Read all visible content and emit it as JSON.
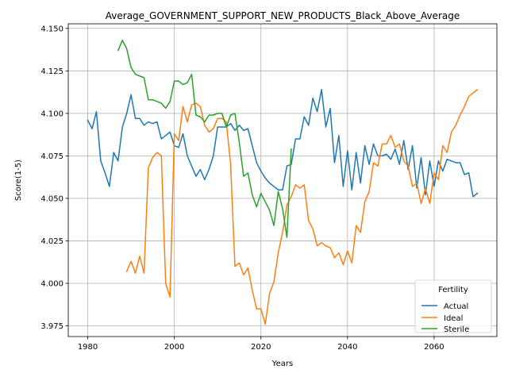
{
  "chart_data": {
    "type": "line",
    "title": "Average_GOVERNMENT_SUPPORT_NEW_PRODUCTS_Black_Above_Average",
    "xlabel": "Years",
    "ylabel": "Score(1-5)",
    "xlim": [
      1975.5,
      2074.5
    ],
    "ylim": [
      3.9687,
      4.1527
    ],
    "xticks": [
      1980,
      2000,
      2020,
      2040,
      2060
    ],
    "yticks": [
      3.975,
      4.0,
      4.025,
      4.05,
      4.075,
      4.1,
      4.125,
      4.15
    ],
    "xtick_labels": [
      "1980",
      "2000",
      "2020",
      "2040",
      "2060"
    ],
    "ytick_labels": [
      "3.975",
      "4.000",
      "4.025",
      "4.050",
      "4.075",
      "4.100",
      "4.125",
      "4.150"
    ],
    "grid": true,
    "legend": {
      "title": "Fertility",
      "position": "lower right"
    },
    "series": [
      {
        "name": "Actual",
        "color": "#1f77b4",
        "points": [
          [
            1980,
            4.096
          ],
          [
            1981,
            4.091
          ],
          [
            1982,
            4.101
          ],
          [
            1983,
            4.072
          ],
          [
            1984,
            4.065
          ],
          [
            1985,
            4.057
          ],
          [
            1986,
            4.077
          ],
          [
            1987,
            4.072
          ],
          [
            1988,
            4.092
          ],
          [
            1989,
            4.1
          ],
          [
            1990,
            4.111
          ],
          [
            1991,
            4.097
          ],
          [
            1992,
            4.097
          ],
          [
            1993,
            4.093
          ],
          [
            1994,
            4.095
          ],
          [
            1995,
            4.094
          ],
          [
            1996,
            4.095
          ],
          [
            1997,
            4.085
          ],
          [
            1998,
            4.087
          ],
          [
            1999,
            4.089
          ],
          [
            2000,
            4.081
          ],
          [
            2001,
            4.08
          ],
          [
            2002,
            4.088
          ],
          [
            2003,
            4.075
          ],
          [
            2004,
            4.069
          ],
          [
            2005,
            4.063
          ],
          [
            2006,
            4.067
          ],
          [
            2007,
            4.061
          ],
          [
            2008,
            4.067
          ],
          [
            2009,
            4.075
          ],
          [
            2010,
            4.092
          ],
          [
            2011,
            4.092
          ],
          [
            2012,
            4.092
          ],
          [
            2013,
            4.094
          ],
          [
            2014,
            4.09
          ],
          [
            2015,
            4.093
          ],
          [
            2016,
            4.09
          ],
          [
            2017,
            4.091
          ],
          [
            2018,
            4.081
          ],
          [
            2019,
            4.071
          ],
          [
            2020,
            4.066
          ],
          [
            2021,
            4.062
          ],
          [
            2022,
            4.059
          ],
          [
            2023,
            4.057
          ],
          [
            2024,
            4.055
          ],
          [
            2025,
            4.055
          ],
          [
            2026,
            4.069
          ],
          [
            2027,
            4.07
          ],
          [
            2028,
            4.085
          ],
          [
            2029,
            4.085
          ],
          [
            2030,
            4.098
          ],
          [
            2031,
            4.093
          ],
          [
            2032,
            4.109
          ],
          [
            2033,
            4.101
          ],
          [
            2034,
            4.114
          ],
          [
            2035,
            4.092
          ],
          [
            2036,
            4.103
          ],
          [
            2037,
            4.071
          ],
          [
            2038,
            4.087
          ],
          [
            2039,
            4.057
          ],
          [
            2040,
            4.078
          ],
          [
            2041,
            4.055
          ],
          [
            2042,
            4.077
          ],
          [
            2043,
            4.059
          ],
          [
            2044,
            4.081
          ],
          [
            2045,
            4.07
          ],
          [
            2046,
            4.082
          ],
          [
            2047,
            4.075
          ],
          [
            2048,
            4.075
          ],
          [
            2049,
            4.076
          ],
          [
            2050,
            4.073
          ],
          [
            2051,
            4.079
          ],
          [
            2052,
            4.07
          ],
          [
            2053,
            4.084
          ],
          [
            2054,
            4.067
          ],
          [
            2055,
            4.081
          ],
          [
            2056,
            4.056
          ],
          [
            2057,
            4.074
          ],
          [
            2058,
            4.052
          ],
          [
            2059,
            4.072
          ],
          [
            2060,
            4.057
          ],
          [
            2061,
            4.072
          ],
          [
            2062,
            4.066
          ],
          [
            2063,
            4.073
          ],
          [
            2064,
            4.072
          ],
          [
            2065,
            4.071
          ],
          [
            2066,
            4.071
          ],
          [
            2067,
            4.064
          ],
          [
            2068,
            4.065
          ],
          [
            2069,
            4.051
          ],
          [
            2070,
            4.053
          ]
        ]
      },
      {
        "name": "Ideal",
        "color": "#ff7f0e",
        "points": [
          [
            1989,
            4.007
          ],
          [
            1990,
            4.013
          ],
          [
            1991,
            4.006
          ],
          [
            1992,
            4.016
          ],
          [
            1993,
            4.006
          ],
          [
            1994,
            4.068
          ],
          [
            1995,
            4.074
          ],
          [
            1996,
            4.077
          ],
          [
            1997,
            4.075
          ],
          [
            1998,
            4.0
          ],
          [
            1999,
            3.992
          ],
          [
            2000,
            4.088
          ],
          [
            2001,
            4.084
          ],
          [
            2002,
            4.104
          ],
          [
            2003,
            4.095
          ],
          [
            2004,
            4.105
          ],
          [
            2005,
            4.106
          ],
          [
            2006,
            4.104
          ],
          [
            2007,
            4.093
          ],
          [
            2008,
            4.089
          ],
          [
            2009,
            4.091
          ],
          [
            2010,
            4.097
          ],
          [
            2011,
            4.097
          ],
          [
            2012,
            4.095
          ],
          [
            2013,
            4.07
          ],
          [
            2014,
            4.01
          ],
          [
            2015,
            4.012
          ],
          [
            2016,
            4.005
          ],
          [
            2017,
            4.009
          ],
          [
            2018,
            3.996
          ],
          [
            2019,
            3.985
          ],
          [
            2020,
            3.985
          ],
          [
            2021,
            3.976
          ],
          [
            2022,
            3.994
          ],
          [
            2023,
            4.001
          ],
          [
            2024,
            4.018
          ],
          [
            2025,
            4.03
          ],
          [
            2026,
            4.046
          ],
          [
            2027,
            4.051
          ],
          [
            2028,
            4.058
          ],
          [
            2029,
            4.056
          ],
          [
            2030,
            4.058
          ],
          [
            2031,
            4.037
          ],
          [
            2032,
            4.032
          ],
          [
            2033,
            4.022
          ],
          [
            2034,
            4.024
          ],
          [
            2035,
            4.022
          ],
          [
            2036,
            4.021
          ],
          [
            2037,
            4.015
          ],
          [
            2038,
            4.018
          ],
          [
            2039,
            4.011
          ],
          [
            2040,
            4.019
          ],
          [
            2041,
            4.012
          ],
          [
            2042,
            4.034
          ],
          [
            2043,
            4.03
          ],
          [
            2044,
            4.048
          ],
          [
            2045,
            4.054
          ],
          [
            2046,
            4.071
          ],
          [
            2047,
            4.069
          ],
          [
            2048,
            4.082
          ],
          [
            2049,
            4.082
          ],
          [
            2050,
            4.087
          ],
          [
            2051,
            4.08
          ],
          [
            2052,
            4.082
          ],
          [
            2053,
            4.072
          ],
          [
            2054,
            4.069
          ],
          [
            2055,
            4.057
          ],
          [
            2056,
            4.059
          ],
          [
            2057,
            4.047
          ],
          [
            2058,
            4.056
          ],
          [
            2059,
            4.047
          ],
          [
            2060,
            4.065
          ],
          [
            2061,
            4.061
          ],
          [
            2062,
            4.081
          ],
          [
            2063,
            4.077
          ],
          [
            2064,
            4.089
          ],
          [
            2065,
            4.093
          ],
          [
            2066,
            4.099
          ],
          [
            2067,
            4.104
          ],
          [
            2068,
            4.11
          ],
          [
            2069,
            4.112
          ],
          [
            2070,
            4.114
          ]
        ]
      },
      {
        "name": "Sterile",
        "color": "#2ca02c",
        "points": [
          [
            1987,
            4.137
          ],
          [
            1988,
            4.143
          ],
          [
            1989,
            4.138
          ],
          [
            1990,
            4.127
          ],
          [
            1991,
            4.123
          ],
          [
            1992,
            4.122
          ],
          [
            1993,
            4.121
          ],
          [
            1994,
            4.108
          ],
          [
            1995,
            4.108
          ],
          [
            1996,
            4.107
          ],
          [
            1997,
            4.106
          ],
          [
            1998,
            4.103
          ],
          [
            1999,
            4.107
          ],
          [
            2000,
            4.119
          ],
          [
            2001,
            4.119
          ],
          [
            2002,
            4.117
          ],
          [
            2003,
            4.118
          ],
          [
            2004,
            4.123
          ],
          [
            2005,
            4.099
          ],
          [
            2006,
            4.098
          ],
          [
            2007,
            4.095
          ],
          [
            2008,
            4.099
          ],
          [
            2009,
            4.099
          ],
          [
            2010,
            4.1
          ],
          [
            2011,
            4.1
          ],
          [
            2012,
            4.092
          ],
          [
            2013,
            4.099
          ],
          [
            2014,
            4.1
          ],
          [
            2015,
            4.083
          ],
          [
            2016,
            4.063
          ],
          [
            2017,
            4.065
          ],
          [
            2018,
            4.052
          ],
          [
            2019,
            4.045
          ],
          [
            2020,
            4.053
          ],
          [
            2021,
            4.048
          ],
          [
            2022,
            4.043
          ],
          [
            2023,
            4.034
          ],
          [
            2024,
            4.054
          ],
          [
            2025,
            4.044
          ],
          [
            2026,
            4.027
          ],
          [
            2027,
            4.079
          ]
        ]
      }
    ]
  }
}
